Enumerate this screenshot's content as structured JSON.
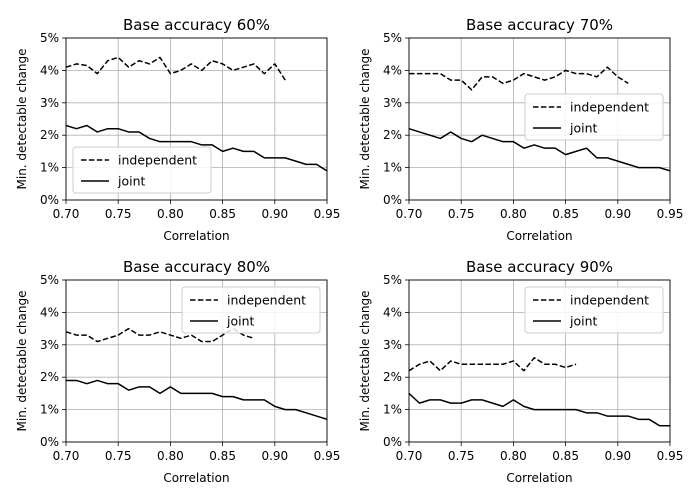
{
  "chart_data": [
    {
      "type": "line",
      "title": "Base accuracy 60%",
      "xlabel": "Correlation",
      "ylabel": "Min. detectable change",
      "xlim": [
        0.7,
        0.95
      ],
      "ylim": [
        0,
        5
      ],
      "xticks": [
        "0.70",
        "0.75",
        "0.80",
        "0.85",
        "0.90",
        "0.95"
      ],
      "yticks": [
        "0%",
        "1%",
        "2%",
        "3%",
        "4%",
        "5%"
      ],
      "grid": true,
      "legend_position": "center-left",
      "series": [
        {
          "name": "independent",
          "style": "dashed",
          "x": [
            0.7,
            0.71,
            0.72,
            0.73,
            0.74,
            0.75,
            0.76,
            0.77,
            0.78,
            0.79,
            0.8,
            0.81,
            0.82,
            0.83,
            0.84,
            0.85,
            0.86,
            0.87,
            0.88,
            0.89,
            0.9,
            0.91
          ],
          "y": [
            4.1,
            4.2,
            4.15,
            3.9,
            4.3,
            4.4,
            4.1,
            4.3,
            4.2,
            4.4,
            3.9,
            4.0,
            4.2,
            4.0,
            4.3,
            4.2,
            4.0,
            4.1,
            4.2,
            3.9,
            4.2,
            3.7
          ]
        },
        {
          "name": "joint",
          "style": "solid",
          "x": [
            0.7,
            0.71,
            0.72,
            0.73,
            0.74,
            0.75,
            0.76,
            0.77,
            0.78,
            0.79,
            0.8,
            0.81,
            0.82,
            0.83,
            0.84,
            0.85,
            0.86,
            0.87,
            0.88,
            0.89,
            0.9,
            0.91,
            0.92,
            0.93,
            0.94,
            0.95
          ],
          "y": [
            2.3,
            2.2,
            2.3,
            2.1,
            2.2,
            2.2,
            2.1,
            2.1,
            1.9,
            1.8,
            1.8,
            1.8,
            1.8,
            1.7,
            1.7,
            1.5,
            1.6,
            1.5,
            1.5,
            1.3,
            1.3,
            1.3,
            1.2,
            1.1,
            1.1,
            0.9
          ]
        }
      ]
    },
    {
      "type": "line",
      "title": "Base accuracy 70%",
      "xlabel": "Correlation",
      "ylabel": "Min. detectable change",
      "xlim": [
        0.7,
        0.95
      ],
      "ylim": [
        0,
        5
      ],
      "xticks": [
        "0.70",
        "0.75",
        "0.80",
        "0.85",
        "0.90",
        "0.95"
      ],
      "yticks": [
        "0%",
        "1%",
        "2%",
        "3%",
        "4%",
        "5%"
      ],
      "grid": true,
      "legend_position": "center-right",
      "series": [
        {
          "name": "independent",
          "style": "dashed",
          "x": [
            0.7,
            0.71,
            0.72,
            0.73,
            0.74,
            0.75,
            0.76,
            0.77,
            0.78,
            0.79,
            0.8,
            0.81,
            0.82,
            0.83,
            0.84,
            0.85,
            0.86,
            0.87,
            0.88,
            0.89,
            0.9,
            0.91
          ],
          "y": [
            3.9,
            3.9,
            3.9,
            3.9,
            3.7,
            3.7,
            3.4,
            3.8,
            3.8,
            3.6,
            3.7,
            3.9,
            3.8,
            3.7,
            3.8,
            4.0,
            3.9,
            3.9,
            3.8,
            4.1,
            3.8,
            3.6
          ]
        },
        {
          "name": "joint",
          "style": "solid",
          "x": [
            0.7,
            0.71,
            0.72,
            0.73,
            0.74,
            0.75,
            0.76,
            0.77,
            0.78,
            0.79,
            0.8,
            0.81,
            0.82,
            0.83,
            0.84,
            0.85,
            0.86,
            0.87,
            0.88,
            0.89,
            0.9,
            0.91,
            0.92,
            0.93,
            0.94,
            0.95
          ],
          "y": [
            2.2,
            2.1,
            2.0,
            1.9,
            2.1,
            1.9,
            1.8,
            2.0,
            1.9,
            1.8,
            1.8,
            1.6,
            1.7,
            1.6,
            1.6,
            1.4,
            1.5,
            1.6,
            1.3,
            1.3,
            1.2,
            1.1,
            1.0,
            1.0,
            1.0,
            0.9
          ]
        }
      ]
    },
    {
      "type": "line",
      "title": "Base accuracy 80%",
      "xlabel": "Correlation",
      "ylabel": "Min. detectable change",
      "xlim": [
        0.7,
        0.95
      ],
      "ylim": [
        0,
        5
      ],
      "xticks": [
        "0.70",
        "0.75",
        "0.80",
        "0.85",
        "0.90",
        "0.95"
      ],
      "yticks": [
        "0%",
        "1%",
        "2%",
        "3%",
        "4%",
        "5%"
      ],
      "grid": true,
      "legend_position": "upper-right",
      "series": [
        {
          "name": "independent",
          "style": "dashed",
          "x": [
            0.7,
            0.71,
            0.72,
            0.73,
            0.74,
            0.75,
            0.76,
            0.77,
            0.78,
            0.79,
            0.8,
            0.81,
            0.82,
            0.83,
            0.84,
            0.85,
            0.86,
            0.87,
            0.88
          ],
          "y": [
            3.4,
            3.3,
            3.3,
            3.1,
            3.2,
            3.3,
            3.5,
            3.3,
            3.3,
            3.4,
            3.3,
            3.2,
            3.3,
            3.1,
            3.1,
            3.3,
            3.5,
            3.3,
            3.2
          ]
        },
        {
          "name": "joint",
          "style": "solid",
          "x": [
            0.7,
            0.71,
            0.72,
            0.73,
            0.74,
            0.75,
            0.76,
            0.77,
            0.78,
            0.79,
            0.8,
            0.81,
            0.82,
            0.83,
            0.84,
            0.85,
            0.86,
            0.87,
            0.88,
            0.89,
            0.9,
            0.91,
            0.92,
            0.93,
            0.94,
            0.95
          ],
          "y": [
            1.9,
            1.9,
            1.8,
            1.9,
            1.8,
            1.8,
            1.6,
            1.7,
            1.7,
            1.5,
            1.7,
            1.5,
            1.5,
            1.5,
            1.5,
            1.4,
            1.4,
            1.3,
            1.3,
            1.3,
            1.1,
            1.0,
            1.0,
            0.9,
            0.8,
            0.7
          ]
        }
      ]
    },
    {
      "type": "line",
      "title": "Base accuracy 90%",
      "xlabel": "Correlation",
      "ylabel": "Min. detectable change",
      "xlim": [
        0.7,
        0.95
      ],
      "ylim": [
        0,
        5
      ],
      "xticks": [
        "0.70",
        "0.75",
        "0.80",
        "0.85",
        "0.90",
        "0.95"
      ],
      "yticks": [
        "0%",
        "1%",
        "2%",
        "3%",
        "4%",
        "5%"
      ],
      "grid": true,
      "legend_position": "upper-right",
      "series": [
        {
          "name": "independent",
          "style": "dashed",
          "x": [
            0.7,
            0.71,
            0.72,
            0.73,
            0.74,
            0.75,
            0.76,
            0.77,
            0.78,
            0.79,
            0.8,
            0.81,
            0.82,
            0.83,
            0.84,
            0.85,
            0.86
          ],
          "y": [
            2.2,
            2.4,
            2.5,
            2.2,
            2.5,
            2.4,
            2.4,
            2.4,
            2.4,
            2.4,
            2.5,
            2.2,
            2.6,
            2.4,
            2.4,
            2.3,
            2.4
          ]
        },
        {
          "name": "joint",
          "style": "solid",
          "x": [
            0.7,
            0.71,
            0.72,
            0.73,
            0.74,
            0.75,
            0.76,
            0.77,
            0.78,
            0.79,
            0.8,
            0.81,
            0.82,
            0.83,
            0.84,
            0.85,
            0.86,
            0.87,
            0.88,
            0.89,
            0.9,
            0.91,
            0.92,
            0.93,
            0.94,
            0.95
          ],
          "y": [
            1.5,
            1.2,
            1.3,
            1.3,
            1.2,
            1.2,
            1.3,
            1.3,
            1.2,
            1.1,
            1.3,
            1.1,
            1.0,
            1.0,
            1.0,
            1.0,
            1.0,
            0.9,
            0.9,
            0.8,
            0.8,
            0.8,
            0.7,
            0.7,
            0.5,
            0.5
          ]
        }
      ]
    }
  ]
}
